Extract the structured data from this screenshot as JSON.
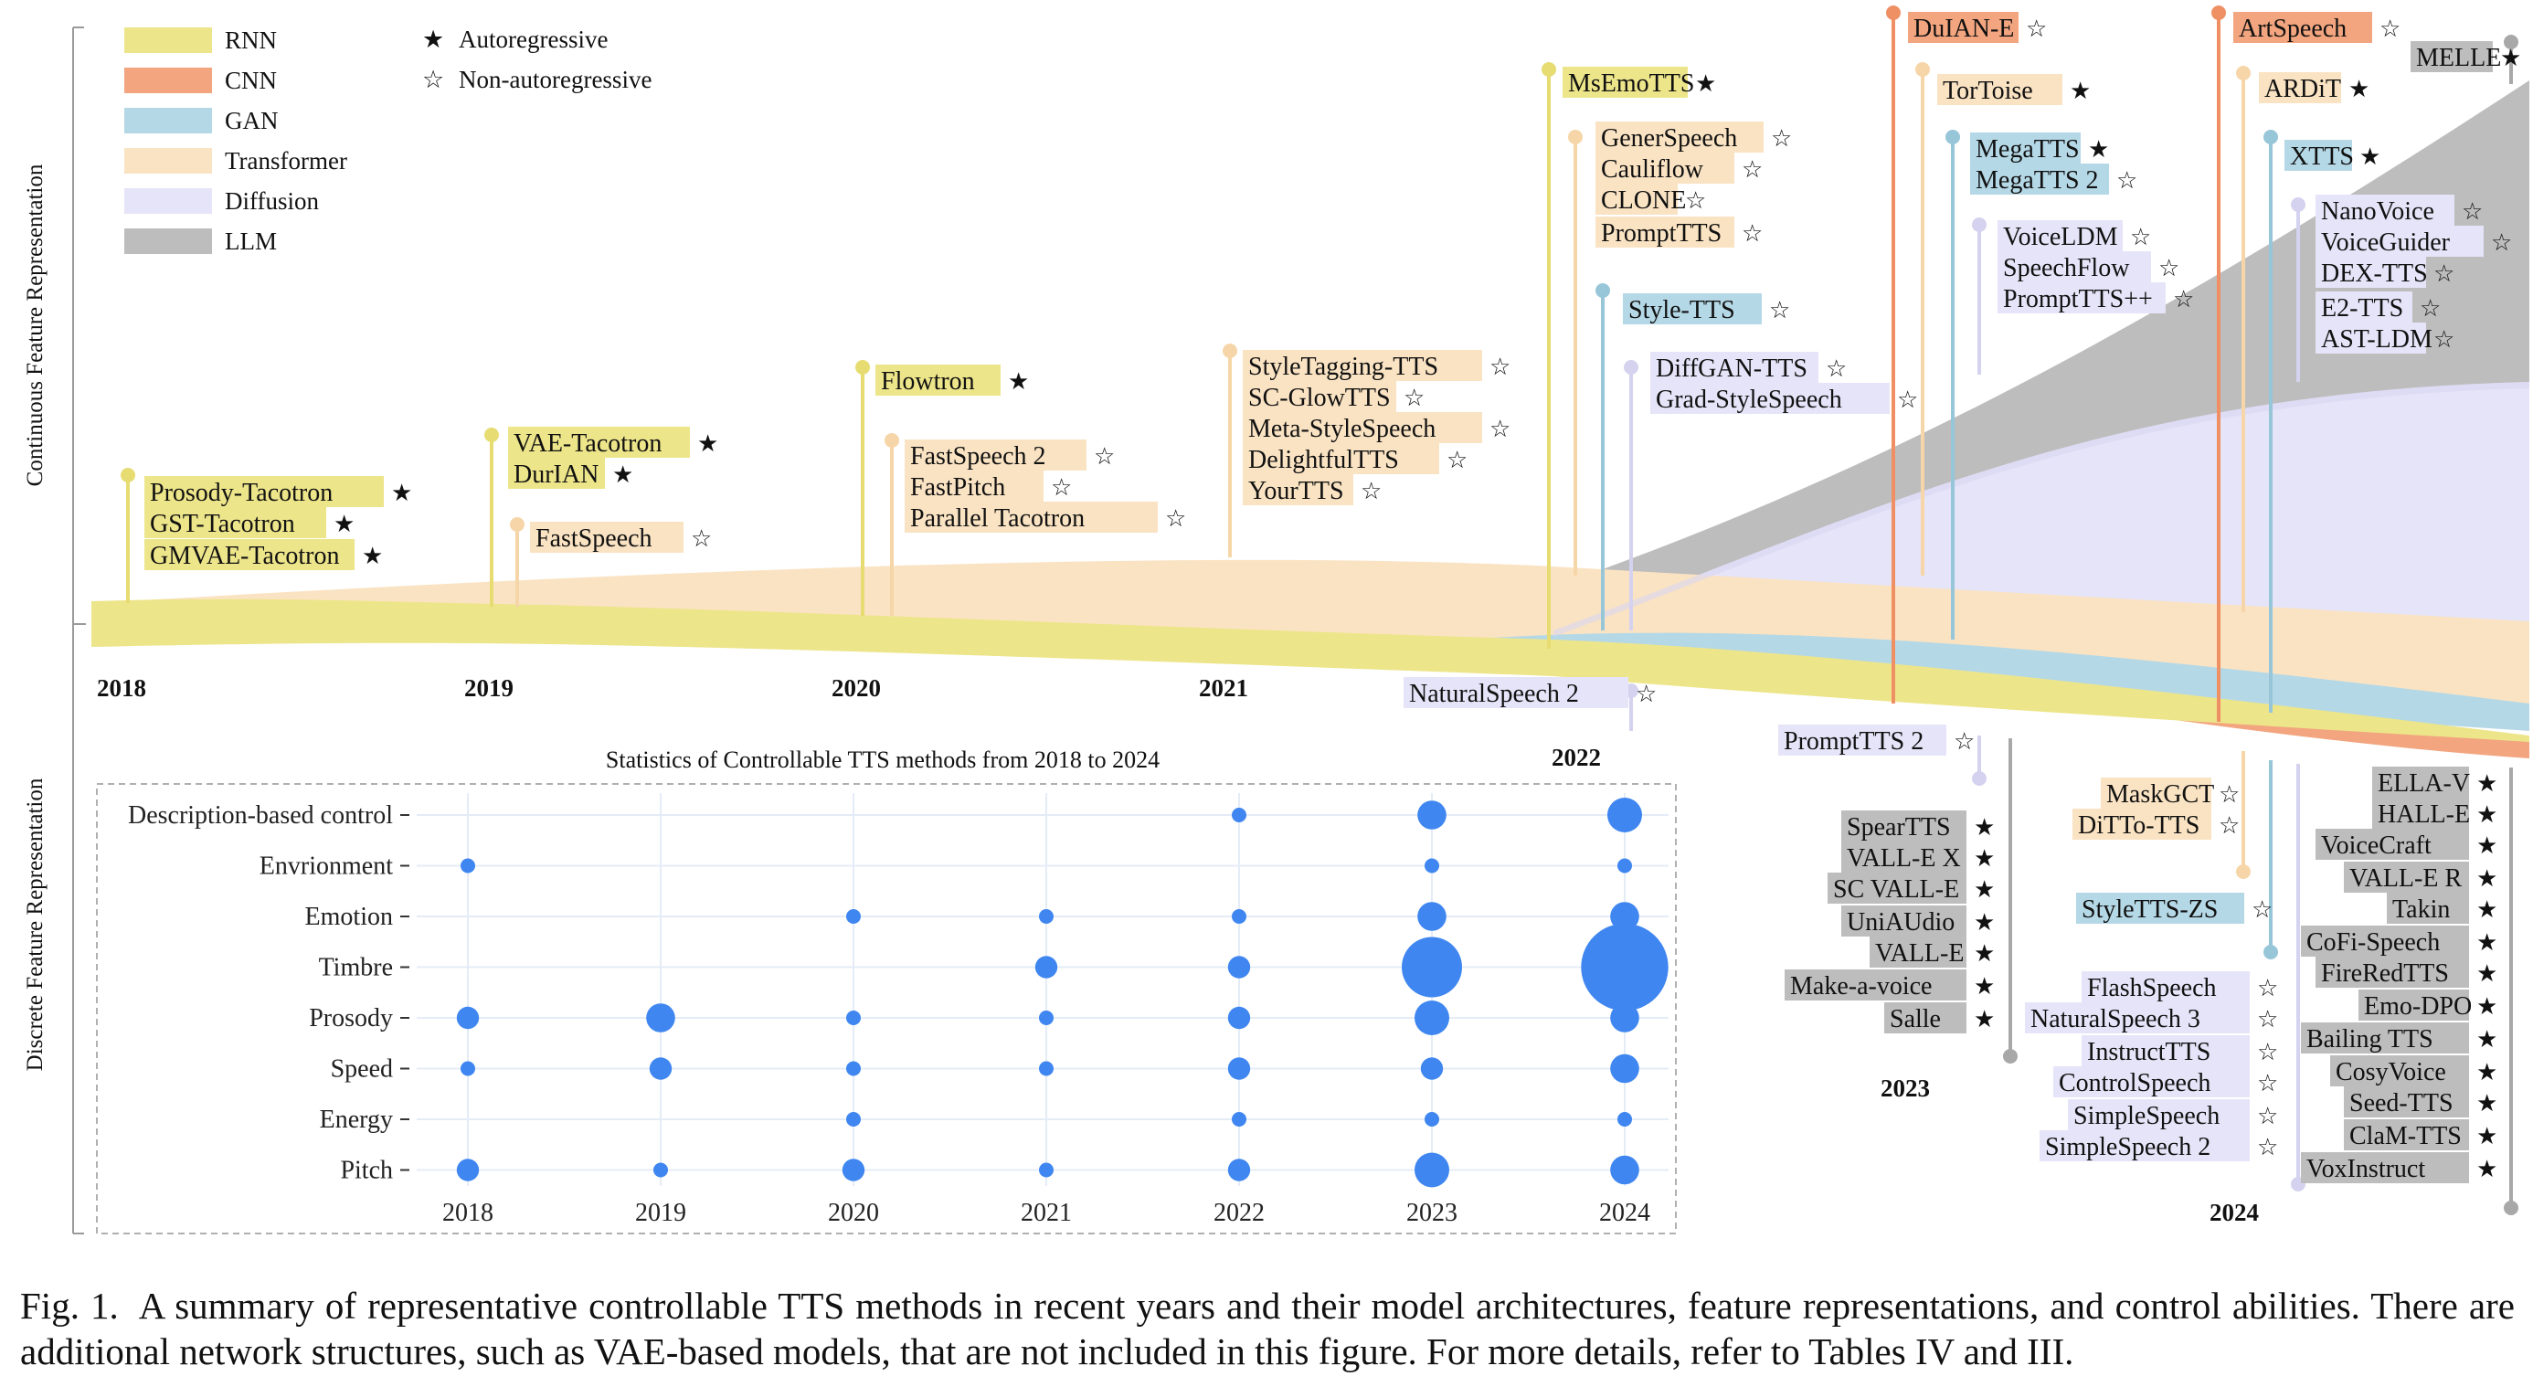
{
  "legend": {
    "architectures": [
      {
        "name": "RNN",
        "color": "#ede58a"
      },
      {
        "name": "CNN",
        "color": "#f2a57f"
      },
      {
        "name": "GAN",
        "color": "#b5d8e6"
      },
      {
        "name": "Transformer",
        "color": "#fae3c3"
      },
      {
        "name": "Diffusion",
        "color": "#e6e4f8"
      },
      {
        "name": "LLM",
        "color": "#bdbdbd"
      }
    ],
    "symbols": [
      {
        "symbol": "★",
        "label": "Autoregressive"
      },
      {
        "symbol": "☆",
        "label": "Non-autoregressive"
      }
    ]
  },
  "axis_labels": {
    "continuous": "Continuous Feature Representation",
    "discrete": "Discrete Feature Representation"
  },
  "year_labels": [
    "2018",
    "2019",
    "2020",
    "2021",
    "2022",
    "2023",
    "2024"
  ],
  "continuous_methods": [
    {
      "name": "Prosody-Tacotron",
      "arch": "RNN",
      "symbol": "★"
    },
    {
      "name": "GST-Tacotron",
      "arch": "RNN",
      "symbol": "★"
    },
    {
      "name": "GMVAE-Tacotron",
      "arch": "RNN",
      "symbol": "★"
    },
    {
      "name": "VAE-Tacotron",
      "arch": "RNN",
      "symbol": "★"
    },
    {
      "name": "DurIAN",
      "arch": "RNN",
      "symbol": "★"
    },
    {
      "name": "FastSpeech",
      "arch": "Transformer",
      "symbol": "☆"
    },
    {
      "name": "Flowtron",
      "arch": "RNN",
      "symbol": "★"
    },
    {
      "name": "FastSpeech 2",
      "arch": "Transformer",
      "symbol": "☆"
    },
    {
      "name": "FastPitch",
      "arch": "Transformer",
      "symbol": "☆"
    },
    {
      "name": "Parallel Tacotron",
      "arch": "Transformer",
      "symbol": "☆"
    },
    {
      "name": "StyleTagging-TTS",
      "arch": "Transformer",
      "symbol": "☆"
    },
    {
      "name": "SC-GlowTTS",
      "arch": "Transformer",
      "symbol": "☆"
    },
    {
      "name": "Meta-StyleSpeech",
      "arch": "Transformer",
      "symbol": "☆"
    },
    {
      "name": "DelightfulTTS",
      "arch": "Transformer",
      "symbol": "☆"
    },
    {
      "name": "YourTTS",
      "arch": "Transformer",
      "symbol": "☆"
    },
    {
      "name": "MsEmoTTS",
      "arch": "RNN",
      "symbol": "★"
    },
    {
      "name": "GenerSpeech",
      "arch": "Transformer",
      "symbol": "☆"
    },
    {
      "name": "Cauliflow",
      "arch": "Transformer",
      "symbol": "☆"
    },
    {
      "name": "CLONE",
      "arch": "Transformer",
      "symbol": "☆"
    },
    {
      "name": "PromptTTS",
      "arch": "Transformer",
      "symbol": "☆"
    },
    {
      "name": "Style-TTS",
      "arch": "GAN",
      "symbol": "☆"
    },
    {
      "name": "DiffGAN-TTS",
      "arch": "Diffusion",
      "symbol": "☆"
    },
    {
      "name": "Grad-StyleSpeech",
      "arch": "Diffusion",
      "symbol": "☆"
    },
    {
      "name": "DuIAN-E",
      "arch": "CNN",
      "symbol": "☆"
    },
    {
      "name": "TorToise",
      "arch": "Transformer",
      "symbol": "★"
    },
    {
      "name": "MegaTTS",
      "arch": "GAN",
      "symbol": "★"
    },
    {
      "name": "MegaTTS 2",
      "arch": "GAN",
      "symbol": "☆"
    },
    {
      "name": "VoiceLDM",
      "arch": "Diffusion",
      "symbol": "☆"
    },
    {
      "name": "SpeechFlow",
      "arch": "Diffusion",
      "symbol": "☆"
    },
    {
      "name": "PromptTTS++",
      "arch": "Diffusion",
      "symbol": "☆"
    },
    {
      "name": "ArtSpeech",
      "arch": "CNN",
      "symbol": "☆"
    },
    {
      "name": "MELLE",
      "arch": "LLM",
      "symbol": "★"
    },
    {
      "name": "ARDiT",
      "arch": "Transformer",
      "symbol": "★"
    },
    {
      "name": "XTTS",
      "arch": "GAN",
      "symbol": "★"
    },
    {
      "name": "NanoVoice",
      "arch": "Diffusion",
      "symbol": "☆"
    },
    {
      "name": "VoiceGuider",
      "arch": "Diffusion",
      "symbol": "☆"
    },
    {
      "name": "DEX-TTS",
      "arch": "Diffusion",
      "symbol": "☆"
    },
    {
      "name": "E2-TTS",
      "arch": "Diffusion",
      "symbol": "☆"
    },
    {
      "name": "AST-LDM",
      "arch": "Diffusion",
      "symbol": "☆"
    }
  ],
  "discrete_methods": [
    {
      "name": "NaturalSpeech 2",
      "arch": "Diffusion",
      "symbol": "☆"
    },
    {
      "name": "PromptTTS 2",
      "arch": "Diffusion",
      "symbol": "☆"
    },
    {
      "name": "SpearTTS",
      "arch": "LLM",
      "symbol": "★"
    },
    {
      "name": "VALL-E X",
      "arch": "LLM",
      "symbol": "★"
    },
    {
      "name": "SC VALL-E",
      "arch": "LLM",
      "symbol": "★"
    },
    {
      "name": "UniAUdio",
      "arch": "LLM",
      "symbol": "★"
    },
    {
      "name": "VALL-E",
      "arch": "LLM",
      "symbol": "★"
    },
    {
      "name": "Make-a-voice",
      "arch": "LLM",
      "symbol": "★"
    },
    {
      "name": "Salle",
      "arch": "LLM",
      "symbol": "★"
    },
    {
      "name": "MaskGCT",
      "arch": "Transformer",
      "symbol": "☆"
    },
    {
      "name": "DiTTo-TTS",
      "arch": "Transformer",
      "symbol": "☆"
    },
    {
      "name": "StyleTTS-ZS",
      "arch": "GAN",
      "symbol": "☆"
    },
    {
      "name": "FlashSpeech",
      "arch": "Diffusion",
      "symbol": "☆"
    },
    {
      "name": "NaturalSpeech 3",
      "arch": "Diffusion",
      "symbol": "☆"
    },
    {
      "name": "InstructTTS",
      "arch": "Diffusion",
      "symbol": "☆"
    },
    {
      "name": "ControlSpeech",
      "arch": "Diffusion",
      "symbol": "☆"
    },
    {
      "name": "SimpleSpeech",
      "arch": "Diffusion",
      "symbol": "☆"
    },
    {
      "name": "SimpleSpeech 2",
      "arch": "Diffusion",
      "symbol": "☆"
    },
    {
      "name": "ELLA-V",
      "arch": "LLM",
      "symbol": "★"
    },
    {
      "name": "HALL-E",
      "arch": "LLM",
      "symbol": "★"
    },
    {
      "name": "VoiceCraft",
      "arch": "LLM",
      "symbol": "★"
    },
    {
      "name": "VALL-E R",
      "arch": "LLM",
      "symbol": "★"
    },
    {
      "name": "Takin",
      "arch": "LLM",
      "symbol": "★"
    },
    {
      "name": "CoFi-Speech",
      "arch": "LLM",
      "symbol": "★"
    },
    {
      "name": "FireRedTTS",
      "arch": "LLM",
      "symbol": "★"
    },
    {
      "name": "Emo-DPO",
      "arch": "LLM",
      "symbol": "★"
    },
    {
      "name": "Bailing TTS",
      "arch": "LLM",
      "symbol": "★"
    },
    {
      "name": "CosyVoice",
      "arch": "LLM",
      "symbol": "★"
    },
    {
      "name": "Seed-TTS",
      "arch": "LLM",
      "symbol": "★"
    },
    {
      "name": "ClaM-TTS",
      "arch": "LLM",
      "symbol": "★"
    },
    {
      "name": "VoxInstruct",
      "arch": "LLM",
      "symbol": "★"
    }
  ],
  "chart_data": {
    "type": "scatter",
    "title": "Statistics of Controllable TTS methods from 2018 to 2024",
    "x": [
      "2018",
      "2019",
      "2020",
      "2021",
      "2022",
      "2023",
      "2024"
    ],
    "y_categories": [
      "Description-based control",
      "Envrionment",
      "Emotion",
      "Timbre",
      "Prosody",
      "Speed",
      "Energy",
      "Pitch"
    ],
    "size_unit": "relative bubble size",
    "series": [
      {
        "values": [
          0,
          0,
          0,
          0,
          1,
          3,
          4
        ]
      },
      {
        "values": [
          1,
          0,
          0,
          0,
          0,
          1,
          1
        ]
      },
      {
        "values": [
          0,
          0,
          1,
          1,
          1,
          3,
          3
        ]
      },
      {
        "values": [
          0,
          0,
          0,
          2,
          2,
          9,
          15
        ]
      },
      {
        "values": [
          2,
          3,
          1,
          1,
          2,
          4,
          3
        ]
      },
      {
        "values": [
          1,
          2,
          1,
          1,
          2,
          2,
          3
        ]
      },
      {
        "values": [
          0,
          0,
          1,
          0,
          1,
          1,
          1
        ]
      },
      {
        "values": [
          2,
          1,
          2,
          1,
          2,
          4,
          3
        ]
      }
    ],
    "marker_color": "#3f86f0",
    "grid": true,
    "legend": "none"
  },
  "caption": {
    "label": "Fig. 1.",
    "text": "A summary of representative controllable TTS methods in recent years and their model architectures, feature representations, and control abilities. There are additional network structures, such as VAE-based models, that are not included in this figure. For more details, refer to Tables IV and III."
  }
}
